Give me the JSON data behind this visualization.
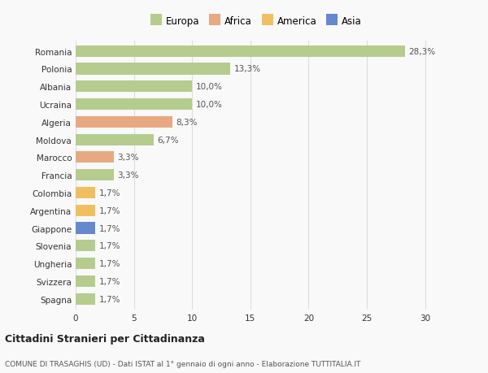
{
  "countries": [
    "Romania",
    "Polonia",
    "Albania",
    "Ucraina",
    "Algeria",
    "Moldova",
    "Marocco",
    "Francia",
    "Colombia",
    "Argentina",
    "Giappone",
    "Slovenia",
    "Ungheria",
    "Svizzera",
    "Spagna"
  ],
  "values": [
    28.3,
    13.3,
    10.0,
    10.0,
    8.3,
    6.7,
    3.3,
    3.3,
    1.7,
    1.7,
    1.7,
    1.7,
    1.7,
    1.7,
    1.7
  ],
  "labels": [
    "28,3%",
    "13,3%",
    "10,0%",
    "10,0%",
    "8,3%",
    "6,7%",
    "3,3%",
    "3,3%",
    "1,7%",
    "1,7%",
    "1,7%",
    "1,7%",
    "1,7%",
    "1,7%",
    "1,7%"
  ],
  "continents": [
    "Europa",
    "Europa",
    "Europa",
    "Europa",
    "Africa",
    "Europa",
    "Africa",
    "Europa",
    "America",
    "America",
    "Asia",
    "Europa",
    "Europa",
    "Europa",
    "Europa"
  ],
  "colors": {
    "Europa": "#b5cc8e",
    "Africa": "#e8a882",
    "America": "#f0c060",
    "Asia": "#6688cc"
  },
  "legend_order": [
    "Europa",
    "Africa",
    "America",
    "Asia"
  ],
  "xlim": [
    0,
    31
  ],
  "xticks": [
    0,
    5,
    10,
    15,
    20,
    25,
    30
  ],
  "title_main": "Cittadini Stranieri per Cittadinanza",
  "title_sub": "COMUNE DI TRASAGHIS (UD) - Dati ISTAT al 1° gennaio di ogni anno - Elaborazione TUTTITALIA.IT",
  "bg_color": "#f9f9f9",
  "grid_color": "#dddddd",
  "bar_height": 0.65,
  "label_fontsize": 7.5,
  "tick_fontsize": 7.5,
  "legend_fontsize": 8.5
}
